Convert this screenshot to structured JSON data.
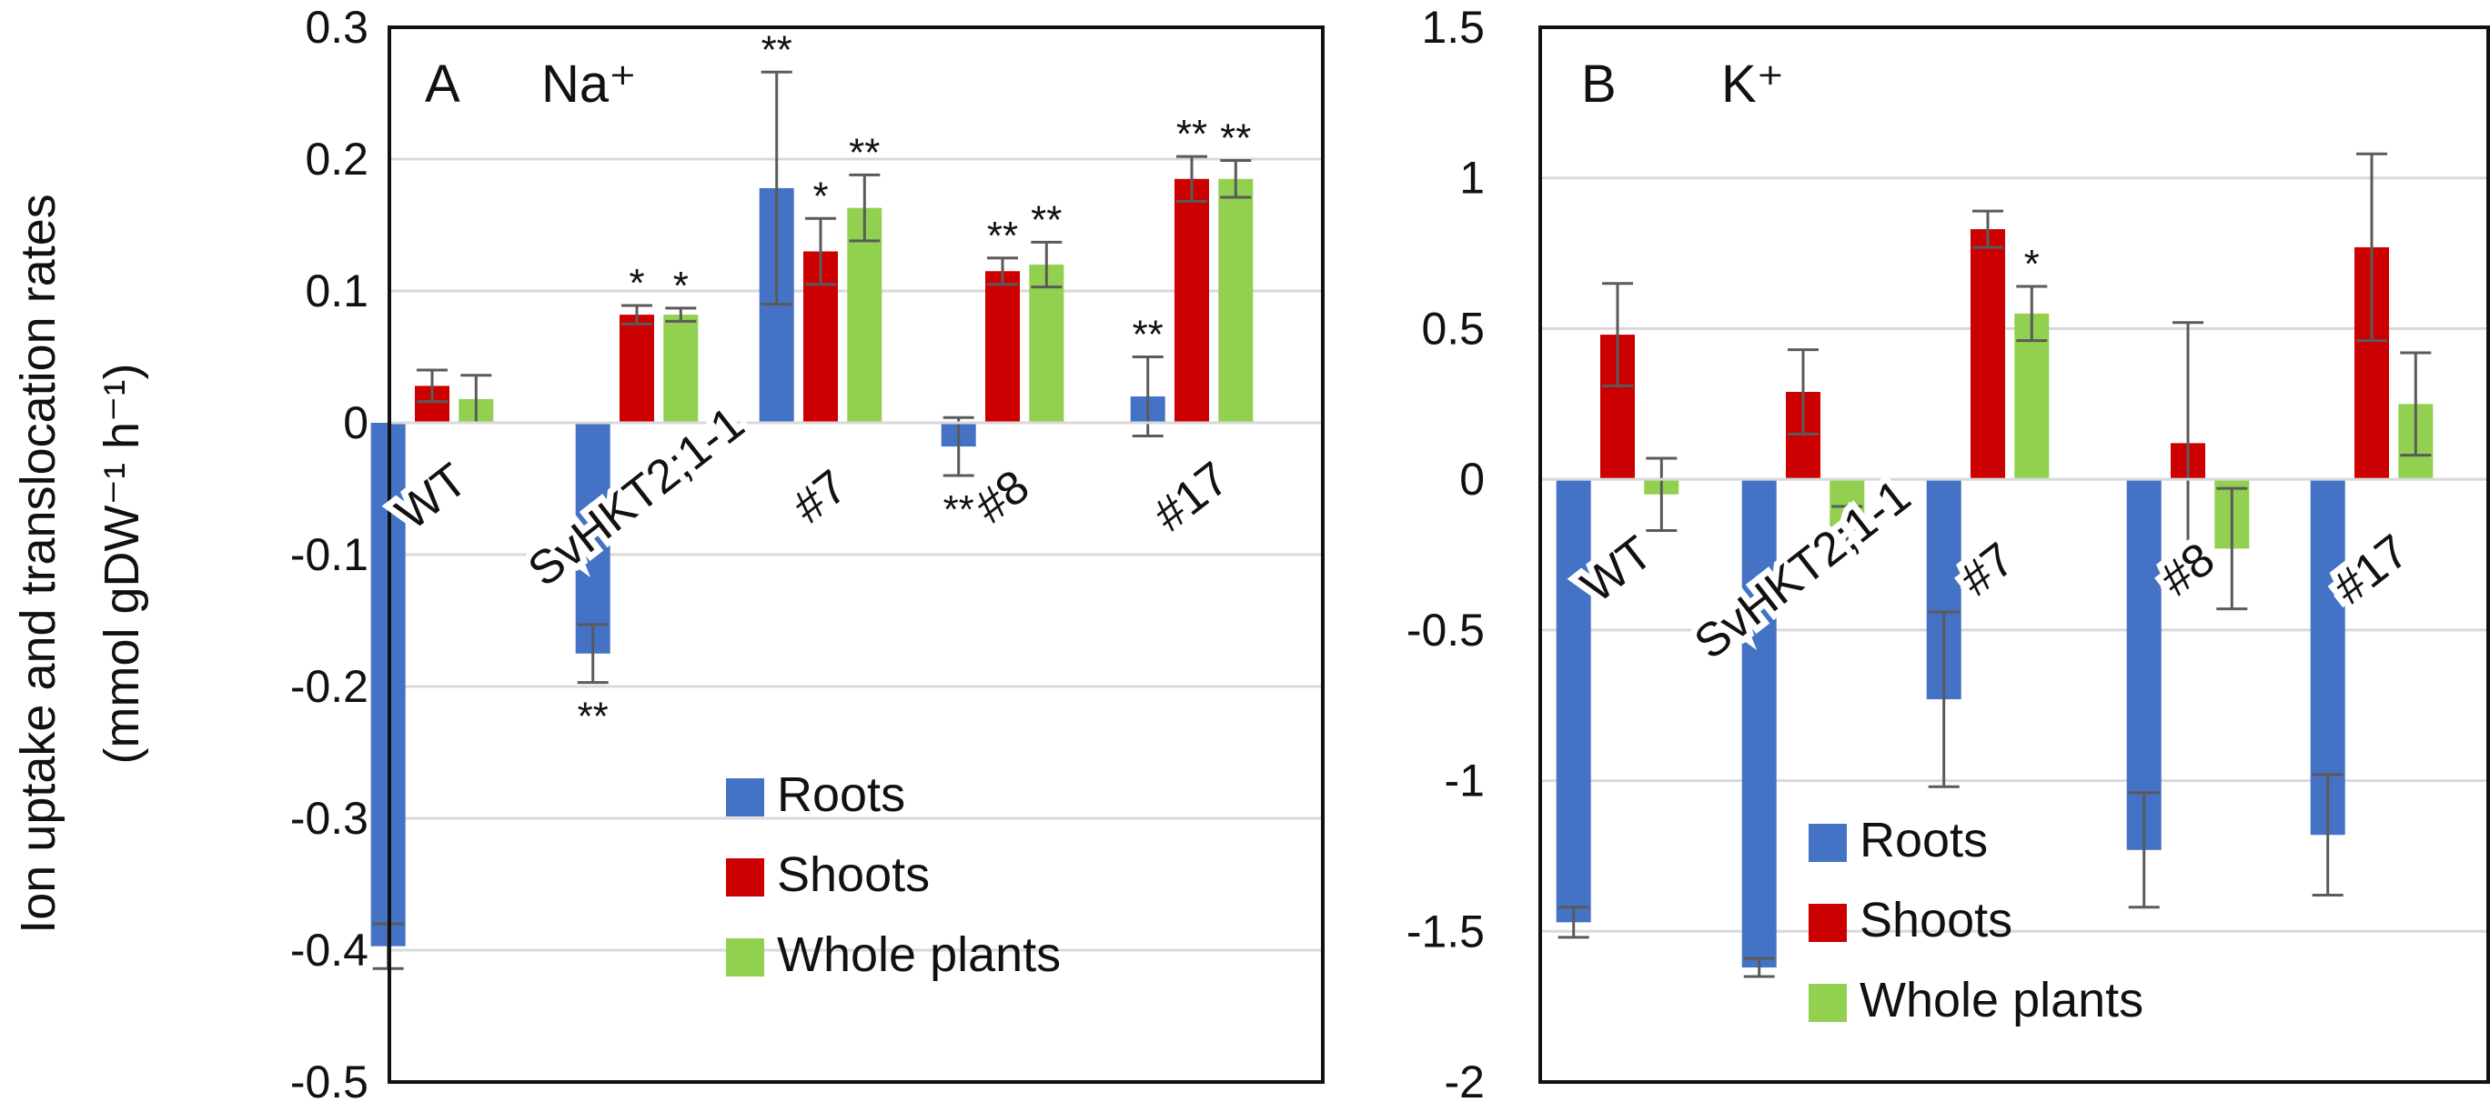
{
  "y_axis_label_line1": "Ion uptake and translocation rates",
  "y_axis_label_line2": "(mmol gDW⁻¹ h⁻¹)",
  "chart_data": [
    {
      "type": "bar",
      "panel": "A",
      "ion": "Na⁺",
      "categories": [
        "WT",
        "SvHKT2;1-1",
        "#7",
        "#8",
        "#17"
      ],
      "ylim": [
        -0.5,
        0.3
      ],
      "yticks": [
        0.3,
        0.2,
        0.1,
        0,
        -0.1,
        -0.2,
        -0.3,
        -0.4,
        -0.5
      ],
      "yticklabels": [
        "0.3",
        "0.2",
        "0.1",
        "0",
        "-0.1",
        "-0.2",
        "-0.3",
        "-0.4",
        "-0.5"
      ],
      "grid": true,
      "legend_position": "bottom-center",
      "series": [
        {
          "name": "Roots",
          "color": "#4472c4",
          "values": [
            -0.397,
            -0.175,
            0.178,
            -0.018,
            0.02
          ],
          "errors": [
            0.017,
            0.022,
            0.088,
            0.022,
            0.03
          ],
          "significance": [
            "",
            "**",
            "**",
            "**",
            "**"
          ]
        },
        {
          "name": "Shoots",
          "color": "#cc0000",
          "values": [
            0.028,
            0.082,
            0.13,
            0.115,
            0.185
          ],
          "errors": [
            0.012,
            0.007,
            0.025,
            0.01,
            0.017
          ],
          "significance": [
            "",
            "*",
            "*",
            "**",
            "**"
          ]
        },
        {
          "name": "Whole plants",
          "color": "#92d050",
          "values": [
            0.018,
            0.082,
            0.163,
            0.12,
            0.185
          ],
          "errors": [
            0.018,
            0.005,
            0.025,
            0.017,
            0.014
          ],
          "significance": [
            "",
            "*",
            "**",
            "**",
            "**"
          ]
        }
      ]
    },
    {
      "type": "bar",
      "panel": "B",
      "ion": "K⁺",
      "categories": [
        "WT",
        "SvHKT2;1-1",
        "#7",
        "#8",
        "#17"
      ],
      "ylim": [
        -2,
        1.5
      ],
      "yticks": [
        1.5,
        1,
        0.5,
        0,
        -0.5,
        -1,
        -1.5,
        -2
      ],
      "yticklabels": [
        "1.5",
        "1",
        "0.5",
        "0",
        "-0.5",
        "-1",
        "-1.5",
        "-2"
      ],
      "grid": true,
      "legend_position": "bottom-center",
      "series": [
        {
          "name": "Roots",
          "color": "#4472c4",
          "values": [
            -1.47,
            -1.62,
            -0.73,
            -1.23,
            -1.18
          ],
          "errors": [
            0.05,
            0.03,
            0.29,
            0.19,
            0.2
          ],
          "significance": [
            "",
            "",
            "",
            "",
            ""
          ]
        },
        {
          "name": "Shoots",
          "color": "#cc0000",
          "values": [
            0.48,
            0.29,
            0.83,
            0.12,
            0.77
          ],
          "errors": [
            0.17,
            0.14,
            0.06,
            0.4,
            0.31
          ],
          "significance": [
            "",
            "",
            "",
            "",
            ""
          ]
        },
        {
          "name": "Whole plants",
          "color": "#92d050",
          "values": [
            -0.05,
            -0.17,
            0.55,
            -0.23,
            0.25
          ],
          "errors": [
            0.12,
            0.08,
            0.09,
            0.2,
            0.17
          ],
          "significance": [
            "",
            "",
            "*",
            "",
            ""
          ]
        }
      ]
    }
  ]
}
